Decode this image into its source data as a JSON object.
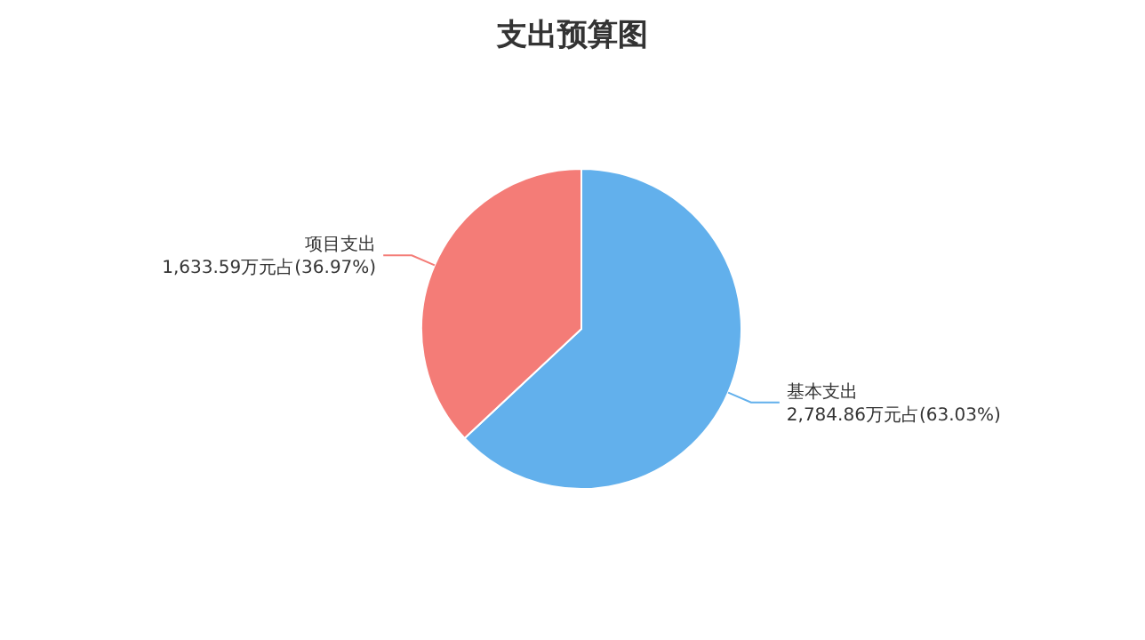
{
  "chart_data": {
    "type": "pie",
    "title": "支出预算图",
    "categories": [
      "基本支出",
      "项目支出"
    ],
    "values": [
      2784.86,
      1633.59
    ],
    "colors": [
      "#62b0ec",
      "#f47c77"
    ],
    "value_labels": [
      "2,784.86万元占(63.03%)",
      "1,633.59万元占(36.97%)"
    ],
    "legend": false
  }
}
